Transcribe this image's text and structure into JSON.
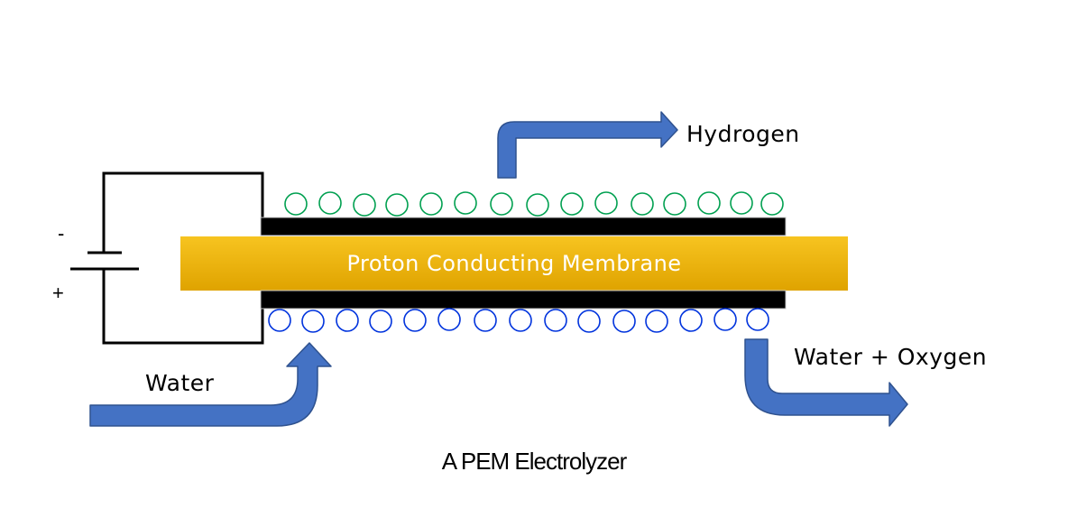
{
  "diagram": {
    "membrane_label": "Proton Conducting Membrane",
    "hydrogen_label": "Hydrogen",
    "water_in_label": "Water",
    "water_oxygen_label": "Water + Oxygen",
    "negative_terminal": "-",
    "positive_terminal": "+",
    "caption": "A PEM Electrolyzer"
  },
  "colors": {
    "membrane_top": "#f7c420",
    "membrane_bottom": "#dfa300",
    "electrode": "#000000",
    "arrow_fill": "#4472c4",
    "arrow_stroke": "#2f528f",
    "hydrogen_bubble": "#00a050",
    "oxygen_bubble": "#0033dd",
    "wire": "#000000"
  },
  "icons": {
    "hydrogen_bubbles": "circle-outline",
    "oxygen_bubbles": "circle-outline",
    "flow_arrows": "bent-arrow",
    "power_source": "battery-symbol"
  }
}
